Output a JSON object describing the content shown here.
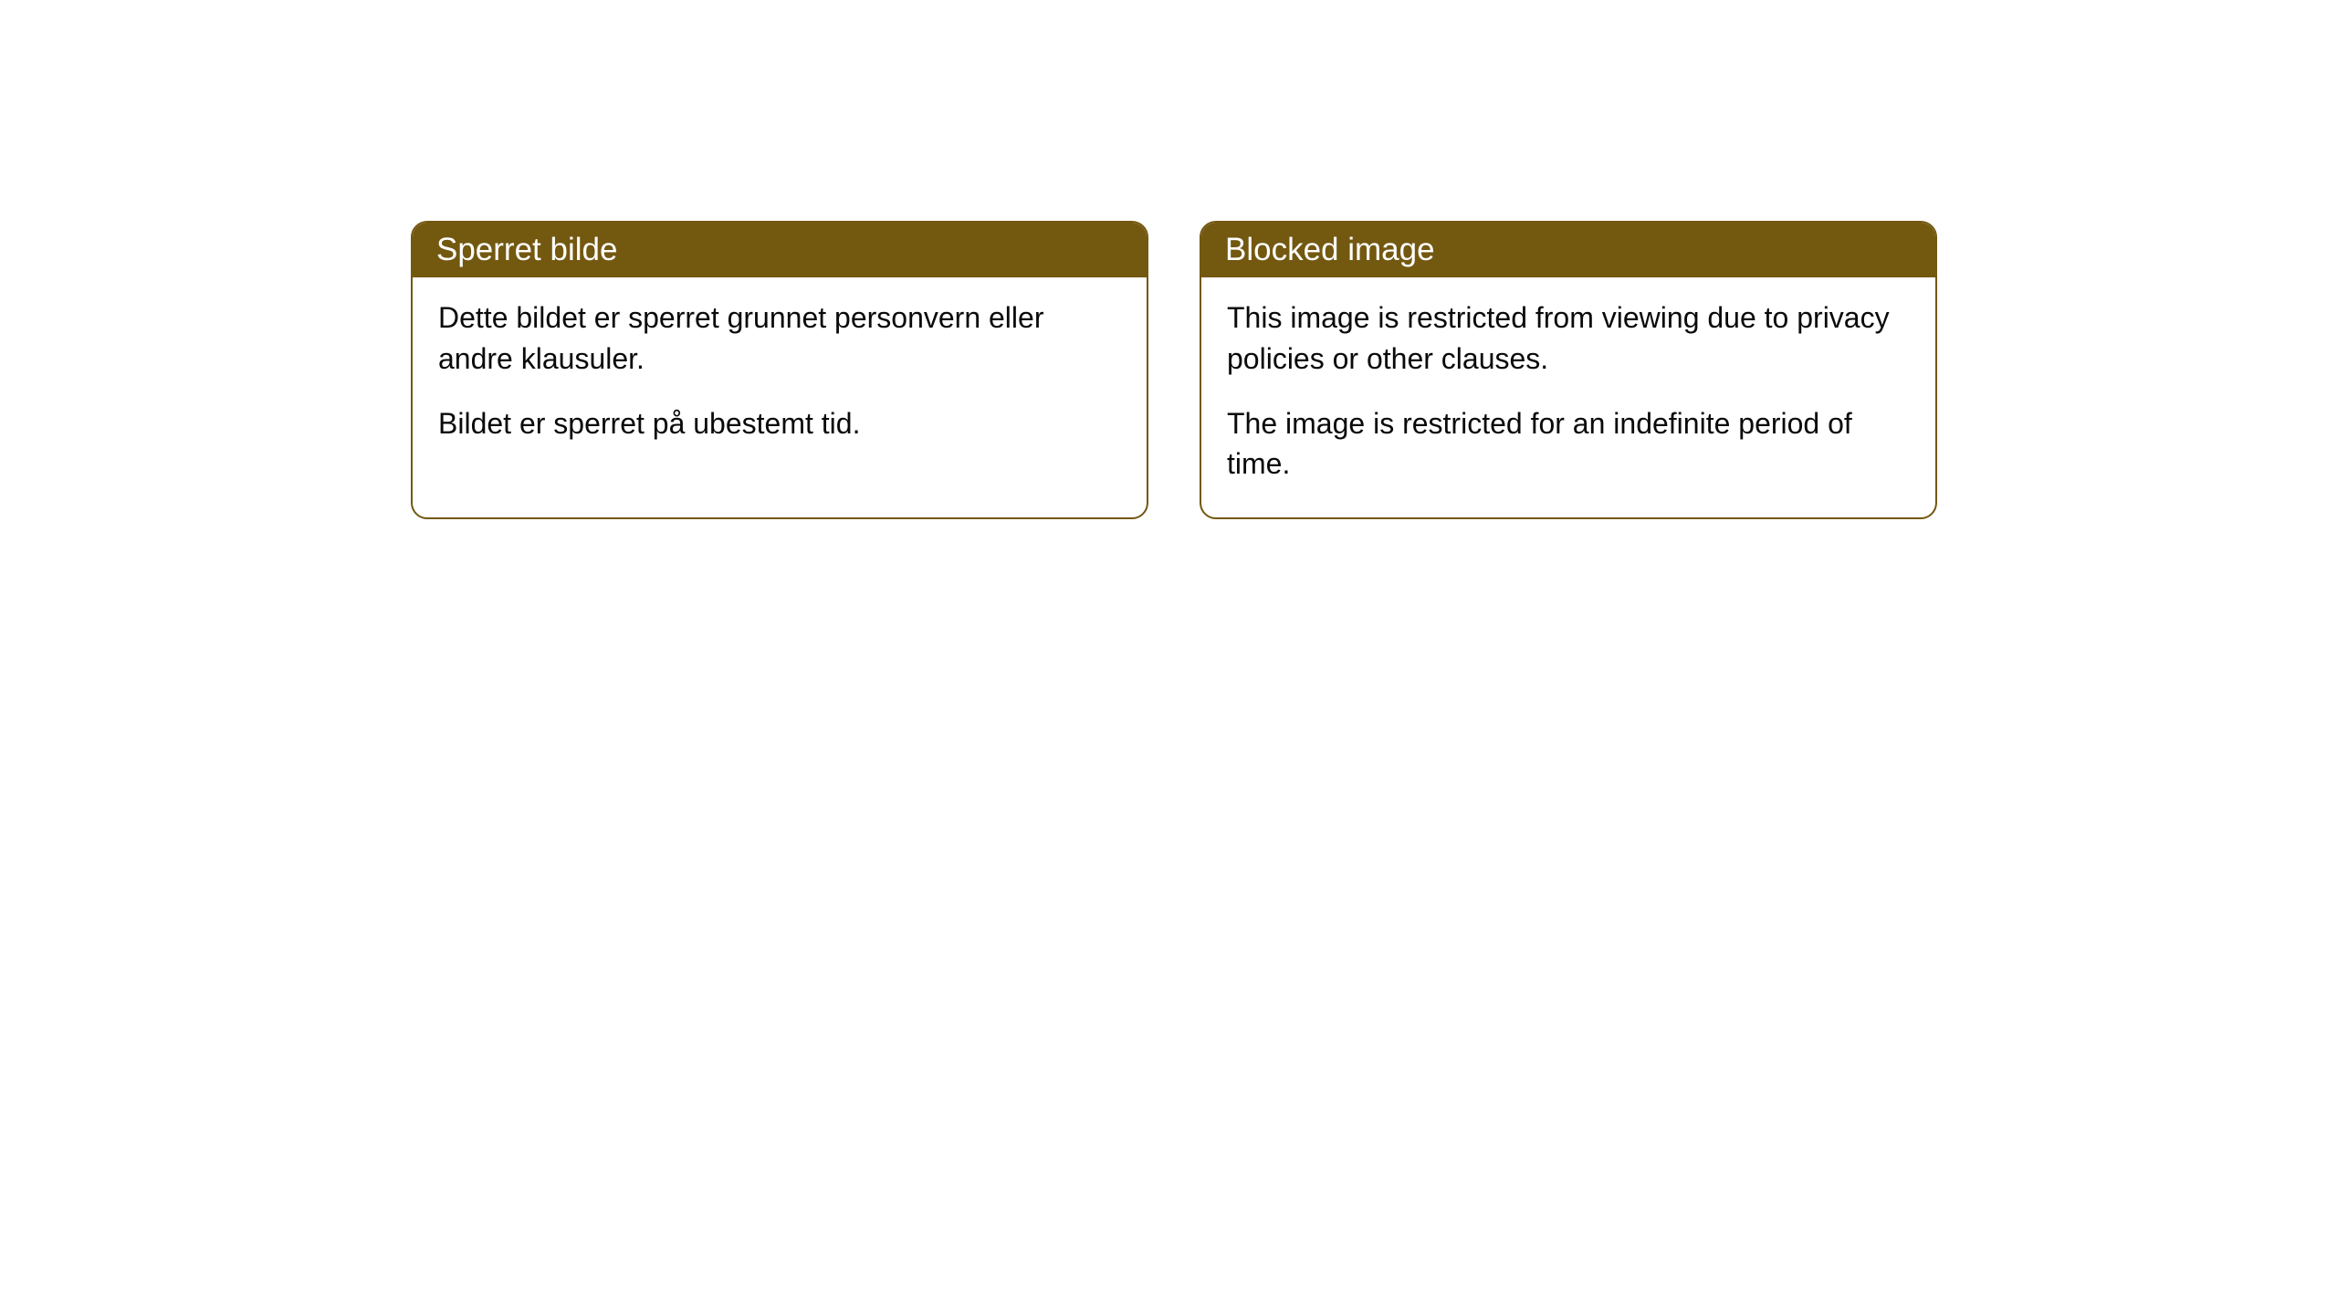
{
  "cards": [
    {
      "title": "Sperret bilde",
      "paragraph1": "Dette bildet er sperret grunnet personvern eller andre klausuler.",
      "paragraph2": "Bildet er sperret på ubestemt tid."
    },
    {
      "title": "Blocked image",
      "paragraph1": "This image is restricted from viewing due to privacy policies or other clauses.",
      "paragraph2": "The image is restricted for an indefinite period of time."
    }
  ],
  "styling": {
    "header_bg_color": "#735810",
    "header_text_color": "#ffffff",
    "border_color": "#735810",
    "body_bg_color": "#ffffff",
    "body_text_color": "#0a0a0a",
    "border_radius": 18,
    "title_fontsize": 35,
    "body_fontsize": 32
  }
}
